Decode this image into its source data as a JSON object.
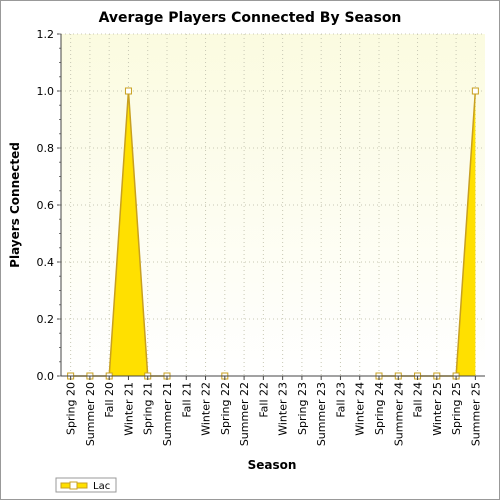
{
  "chart_data": {
    "type": "area",
    "title": "Average Players Connected By Season",
    "xlabel": "Season",
    "ylabel": "Players Connected",
    "ylim": [
      0,
      1.2
    ],
    "yticks": [
      "0.0",
      "0.2",
      "0.4",
      "0.6",
      "0.8",
      "1.0",
      "1.2"
    ],
    "categories": [
      "Spring 20",
      "Summer 20",
      "Fall 20",
      "Winter 21",
      "Spring 21",
      "Summer 21",
      "Fall 21",
      "Winter 22",
      "Spring 22",
      "Summer 22",
      "Fall 22",
      "Winter 23",
      "Spring 23",
      "Summer 23",
      "Fall 23",
      "Winter 24",
      "Spring 24",
      "Summer 24",
      "Fall 24",
      "Winter 25",
      "Spring 25",
      "Summer 25"
    ],
    "series": [
      {
        "name": "Lac",
        "values": [
          0,
          0,
          0,
          1,
          0,
          0,
          null,
          null,
          0,
          null,
          null,
          null,
          null,
          null,
          null,
          null,
          0,
          0,
          0,
          0,
          0,
          1
        ]
      }
    ],
    "grid": true,
    "legend": "bottom-left",
    "colors": {
      "fill": "#ffe000",
      "line": "#c8a020",
      "marker_fill": "#ffffff",
      "plot_bg_top": "#fbfbe0",
      "plot_bg_bottom": "#ffffff",
      "grid": "#c8c8b4"
    }
  }
}
